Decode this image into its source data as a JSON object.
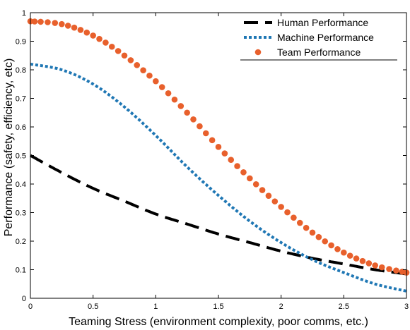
{
  "chart_data": {
    "type": "line",
    "title": "",
    "xlabel": "Teaming Stress (environment complexity, poor comms, etc.)",
    "ylabel": "Performance (safety, efficiency, etc)",
    "xlim": [
      0,
      3
    ],
    "ylim": [
      0,
      1
    ],
    "xticks": [
      "0",
      "0.5",
      "1",
      "1.5",
      "2",
      "2.5",
      "3"
    ],
    "yticks": [
      "0",
      "0.1",
      "0.2",
      "0.3",
      "0.4",
      "0.5",
      "0.6",
      "0.7",
      "0.8",
      "0.9",
      "1"
    ],
    "grid": false,
    "legend_position": "top-right",
    "series": [
      {
        "name": "Human Performance",
        "style": "dashed",
        "color": "#000000",
        "x": [
          0,
          0.25,
          0.5,
          0.75,
          1.0,
          1.25,
          1.5,
          1.75,
          2.0,
          2.25,
          2.5,
          2.75,
          3.0
        ],
        "y": [
          0.5,
          0.44,
          0.385,
          0.34,
          0.295,
          0.26,
          0.225,
          0.195,
          0.165,
          0.14,
          0.12,
          0.1,
          0.085
        ]
      },
      {
        "name": "Machine Performance",
        "style": "dotted",
        "color": "#1f77b4",
        "x": [
          0,
          0.25,
          0.5,
          0.75,
          1.0,
          1.25,
          1.5,
          1.75,
          2.0,
          2.25,
          2.5,
          2.75,
          3.0
        ],
        "y": [
          0.82,
          0.8,
          0.75,
          0.67,
          0.57,
          0.46,
          0.36,
          0.27,
          0.195,
          0.135,
          0.09,
          0.05,
          0.025
        ]
      },
      {
        "name": "Team Performance",
        "style": "markers",
        "color": "#e8602c",
        "x": [
          0,
          0.25,
          0.5,
          0.75,
          1.0,
          1.25,
          1.5,
          1.75,
          2.0,
          2.25,
          2.5,
          2.75,
          3.0
        ],
        "y": [
          0.97,
          0.96,
          0.92,
          0.85,
          0.76,
          0.65,
          0.53,
          0.42,
          0.32,
          0.23,
          0.16,
          0.115,
          0.09
        ]
      }
    ]
  }
}
